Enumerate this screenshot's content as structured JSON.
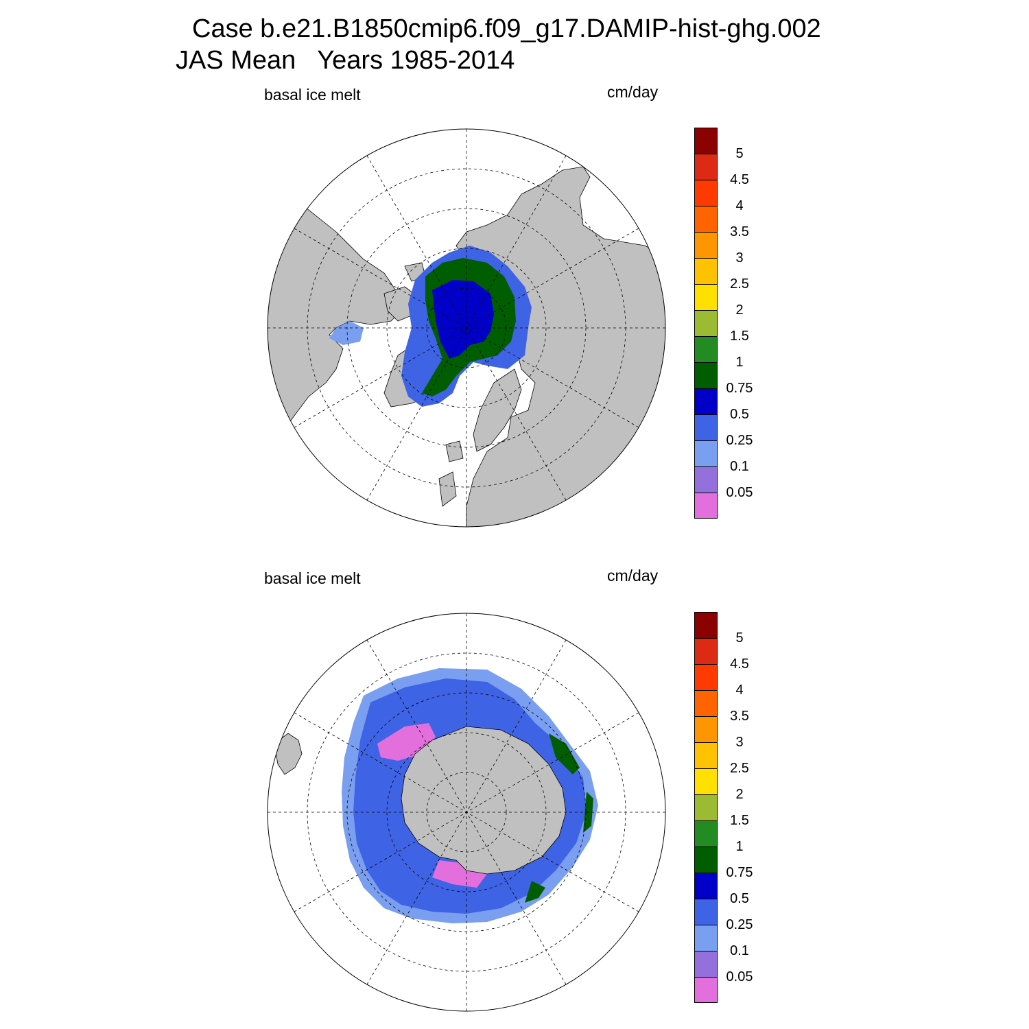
{
  "title": {
    "line1": "Case b.e21.B1850cmip6.f09_g17.DAMIP-hist-ghg.002",
    "line2": "JAS Mean   Years 1985-2014"
  },
  "panels": [
    {
      "id": "north",
      "hemisphere": "Northern",
      "variable_label": "basal ice melt",
      "units_label": "cm/day"
    },
    {
      "id": "south",
      "hemisphere": "Southern",
      "variable_label": "basal ice melt",
      "units_label": "cm/day"
    }
  ],
  "colorbar": {
    "levels": [
      "0.05",
      "0.1",
      "0.25",
      "0.5",
      "0.75",
      "1",
      "1.5",
      "2",
      "2.5",
      "3",
      "3.5",
      "4",
      "4.5",
      "5"
    ],
    "colors": [
      "#e36fdc",
      "#9370db",
      "#7a9ef0",
      "#3f63e5",
      "#0000c8",
      "#005e00",
      "#228b22",
      "#9bbc32",
      "#ffe000",
      "#ffc200",
      "#ff9600",
      "#ff6400",
      "#ff3a00",
      "#dc2a14",
      "#8b0000"
    ]
  },
  "map_style": {
    "land_color": "#c0c0c0",
    "ocean_color": "#ffffff",
    "grid_style": "dashed",
    "projection": "polar stereographic"
  }
}
